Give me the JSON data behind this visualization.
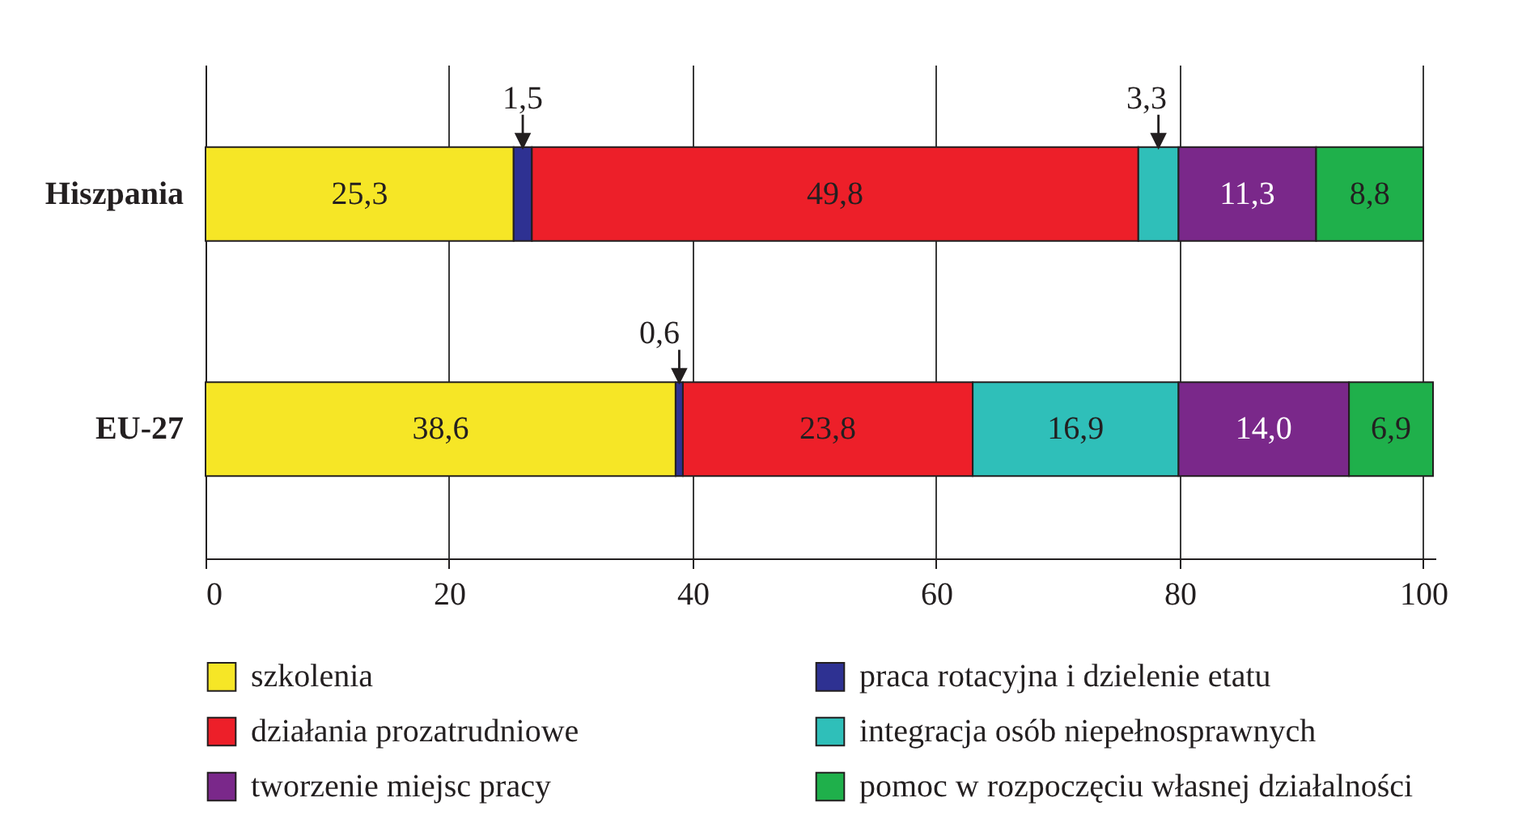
{
  "chart_data": {
    "type": "bar",
    "orientation": "horizontal",
    "stacked": true,
    "categories": [
      "Hiszpania",
      "EU-27"
    ],
    "series": [
      {
        "name": "szkolenia",
        "color": "#f6e626",
        "values": [
          25.3,
          38.6
        ],
        "value_labels": [
          "25,3",
          "38,6"
        ]
      },
      {
        "name": "praca rotacyjna i dzielenie etatu",
        "color": "#2e3192",
        "values": [
          1.5,
          0.6
        ],
        "value_labels": [
          "1,5",
          "0,6"
        ]
      },
      {
        "name": "działania prozatrudniowe",
        "color": "#ed1f29",
        "values": [
          49.8,
          23.8
        ],
        "value_labels": [
          "49,8",
          "23,8"
        ]
      },
      {
        "name": "integracja osób niepełnosprawnych",
        "color": "#2fbfb9",
        "values": [
          3.3,
          16.9
        ],
        "value_labels": [
          "3,3",
          "16,9"
        ]
      },
      {
        "name": "tworzenie miejsc pracy",
        "color": "#7a288a",
        "values": [
          11.3,
          14.0
        ],
        "value_labels": [
          "11,3",
          "14,0"
        ]
      },
      {
        "name": "pomoc w rozpoczęciu własnej działalności",
        "color": "#1fb04b",
        "values": [
          8.8,
          6.9
        ],
        "value_labels": [
          "8,8",
          "6,9"
        ]
      }
    ],
    "xlim": [
      0,
      101
    ],
    "xticks": [
      0,
      20,
      40,
      60,
      80,
      100
    ],
    "grid": "x",
    "legend": "bottom"
  }
}
